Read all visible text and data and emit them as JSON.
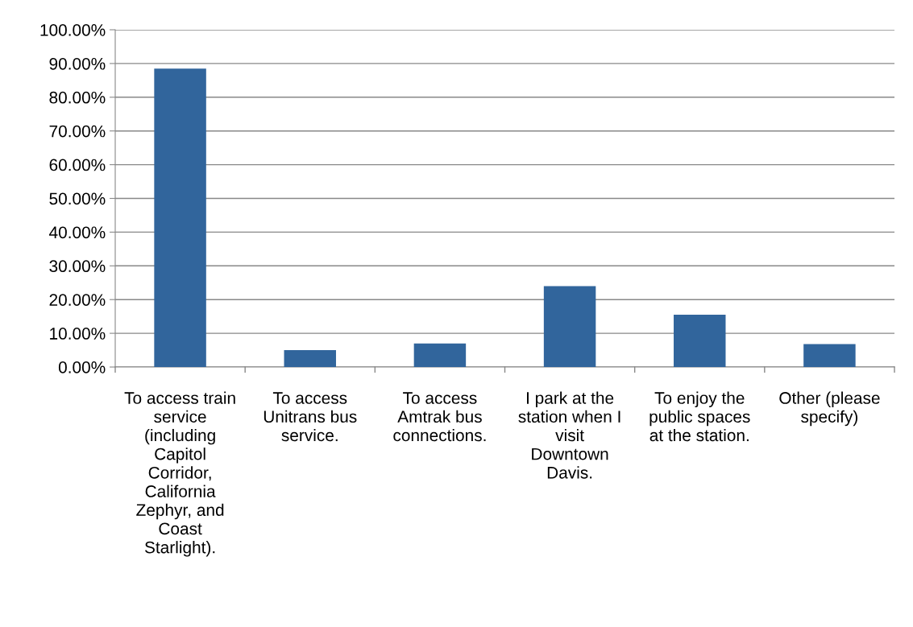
{
  "chart_data": {
    "type": "bar",
    "categories": [
      "To access train\nservice\n(including\nCapitol\nCorridor,\nCalifornia\nZephyr, and\nCoast\nStarlight).",
      "To access\nUnitrans bus\nservice.",
      "To access\nAmtrak bus\nconnections.",
      "I park at the\nstation when I\nvisit\nDowntown\nDavis.",
      "To enjoy the\npublic spaces\nat the station.",
      "Other (please\nspecify)"
    ],
    "values": [
      88.5,
      5.0,
      7.0,
      24.0,
      15.5,
      6.8
    ],
    "color": "#31659c",
    "ylim": [
      0,
      100
    ],
    "yticks": [
      {
        "value": 0,
        "label": "0.00%"
      },
      {
        "value": 10,
        "label": "10.00%"
      },
      {
        "value": 20,
        "label": "20.00%"
      },
      {
        "value": 30,
        "label": "30.00%"
      },
      {
        "value": 40,
        "label": "40.00%"
      },
      {
        "value": 50,
        "label": "50.00%"
      },
      {
        "value": 60,
        "label": "60.00%"
      },
      {
        "value": 70,
        "label": "70.00%"
      },
      {
        "value": 80,
        "label": "80.00%"
      },
      {
        "value": 90,
        "label": "90.00%"
      },
      {
        "value": 100,
        "label": "100.00%"
      }
    ],
    "grid": "y"
  }
}
